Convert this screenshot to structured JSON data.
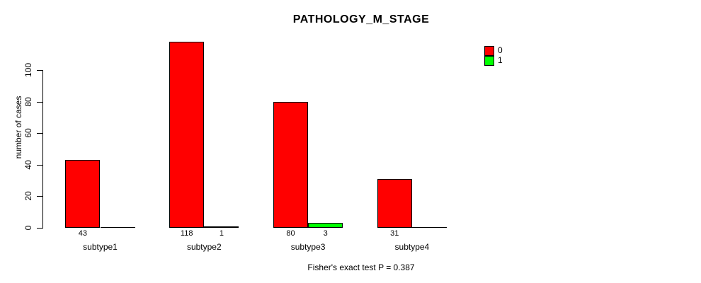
{
  "title": "PATHOLOGY_M_STAGE",
  "caption": "Fisher's exact test P = 0.387",
  "y_axis": {
    "label": "number of cases",
    "ticks": [
      0,
      20,
      40,
      60,
      80,
      100
    ]
  },
  "legend": {
    "position": "top-right",
    "items": [
      {
        "label": "0",
        "color": "#FF0000"
      },
      {
        "label": "1",
        "color": "#00FF00"
      }
    ]
  },
  "chart_data": {
    "type": "bar",
    "title": "PATHOLOGY_M_STAGE",
    "xlabel": "",
    "ylabel": "number of cases",
    "ylim": [
      0,
      100
    ],
    "y_ticks": [
      0,
      20,
      40,
      60,
      80,
      100
    ],
    "grid": false,
    "legend_position": "top-right",
    "categories": [
      "subtype1",
      "subtype2",
      "subtype3",
      "subtype4"
    ],
    "series": [
      {
        "name": "0",
        "color": "#FF0000",
        "values": [
          43,
          118,
          80,
          31
        ]
      },
      {
        "name": "1",
        "color": "#00FF00",
        "values": [
          0,
          1,
          3,
          0
        ]
      }
    ],
    "bar_value_labels": {
      "shown_when_positive": true,
      "labels": [
        [
          "43",
          ""
        ],
        [
          "118",
          "1"
        ],
        [
          "80",
          "3"
        ],
        [
          "31",
          ""
        ]
      ]
    },
    "annotation": "Fisher's exact test P = 0.387"
  }
}
